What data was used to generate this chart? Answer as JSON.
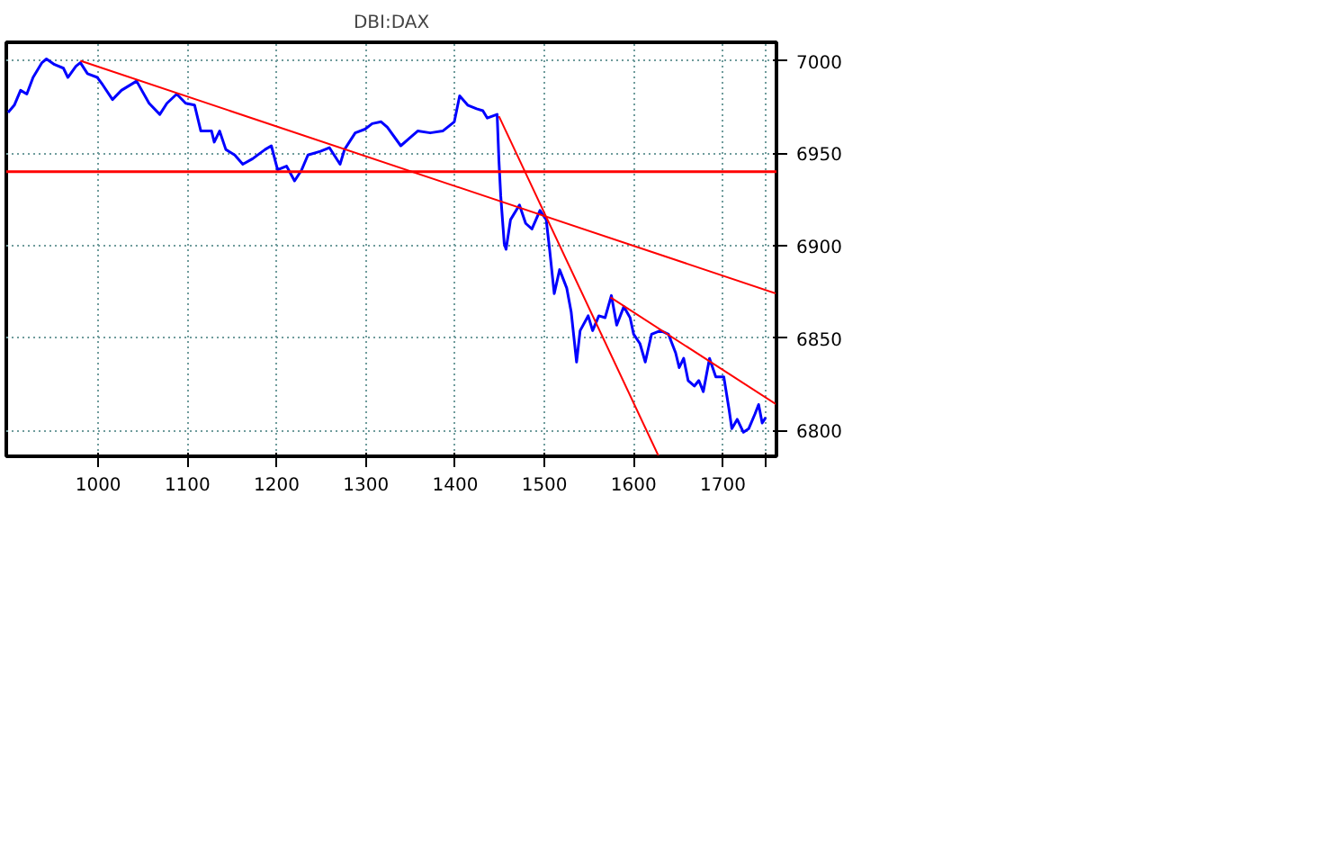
{
  "chart_data": {
    "type": "line",
    "title": "DBI:DAX",
    "xlim": [
      897,
      1760
    ],
    "ylim": [
      6786,
      7010
    ],
    "xticks": [
      1000,
      1100,
      1200,
      1300,
      1400,
      1500,
      1600,
      1700,
      {
        "value": 1747,
        "label": null
      }
    ],
    "yticks": [
      6800,
      6850,
      6900,
      6950,
      7000
    ],
    "grid": true,
    "marker": "none",
    "line_style": "solid",
    "ref_lines": [
      {
        "axis": "y",
        "value": 6940,
        "color": "#ff0000"
      }
    ],
    "series": [
      {
        "color": "#0000ff",
        "x": [
          899,
          906,
          913,
          920,
          927,
          937,
          942,
          951,
          961,
          966,
          975,
          980,
          988,
          999,
          1005,
          1016,
          1026,
          1043,
          1057,
          1069,
          1077,
          1088,
          1098,
          1108,
          1115,
          1127,
          1130,
          1136,
          1143,
          1153,
          1162,
          1173,
          1187,
          1194,
          1201,
          1211,
          1220,
          1228,
          1235,
          1249,
          1259,
          1271,
          1276,
          1288,
          1299,
          1307,
          1317,
          1324,
          1339,
          1351,
          1358,
          1372,
          1386,
          1399,
          1405,
          1414,
          1424,
          1431,
          1436,
          1447,
          1449,
          1451,
          1455,
          1457,
          1462,
          1472,
          1479,
          1486,
          1495,
          1502,
          1506,
          1511,
          1517,
          1525,
          1530,
          1536,
          1540,
          1549,
          1554,
          1561,
          1568,
          1575,
          1581,
          1589,
          1596,
          1600,
          1607,
          1613,
          1620,
          1630,
          1639,
          1647,
          1651,
          1656,
          1661,
          1668,
          1673,
          1678,
          1685,
          1692,
          1701,
          1707,
          1710,
          1716,
          1723,
          1729,
          1736,
          1740,
          1744,
          1748
        ],
        "values": [
          6972,
          6976,
          6984,
          6982,
          6991,
          6999,
          7001,
          6998,
          6996,
          6991,
          6997,
          6999,
          6993,
          6991,
          6987,
          6979,
          6984,
          6989,
          6977,
          6971,
          6977,
          6982,
          6977,
          6976,
          6962,
          6962,
          6956,
          6962,
          6952,
          6949,
          6944,
          6947,
          6952,
          6954,
          6941,
          6943,
          6935,
          6941,
          6949,
          6951,
          6953,
          6944,
          6952,
          6961,
          6963,
          6966,
          6967,
          6964,
          6954,
          6959,
          6962,
          6961,
          6962,
          6967,
          6981,
          6976,
          6974,
          6973,
          6969,
          6971,
          6946,
          6927,
          6901,
          6898,
          6914,
          6922,
          6912,
          6909,
          6919,
          6914,
          6897,
          6874,
          6887,
          6877,
          6864,
          6837,
          6854,
          6862,
          6854,
          6862,
          6861,
          6873,
          6857,
          6867,
          6861,
          6852,
          6847,
          6837,
          6852,
          6854,
          6852,
          6842,
          6834,
          6839,
          6827,
          6824,
          6827,
          6821,
          6839,
          6829,
          6829,
          6811,
          6801,
          6806,
          6799,
          6801,
          6809,
          6814,
          6804,
          6807
        ]
      },
      {
        "type": "line",
        "color": "#ff0000",
        "x": [
          980,
          1760
        ],
        "values": [
          7000,
          6874
        ]
      },
      {
        "type": "line",
        "color": "#ff0000",
        "x": [
          1449,
          1628
        ],
        "values": [
          6970,
          6786
        ]
      },
      {
        "type": "line",
        "color": "#ff0000",
        "x": [
          1574,
          1760
        ],
        "values": [
          6872,
          6814
        ]
      }
    ]
  }
}
